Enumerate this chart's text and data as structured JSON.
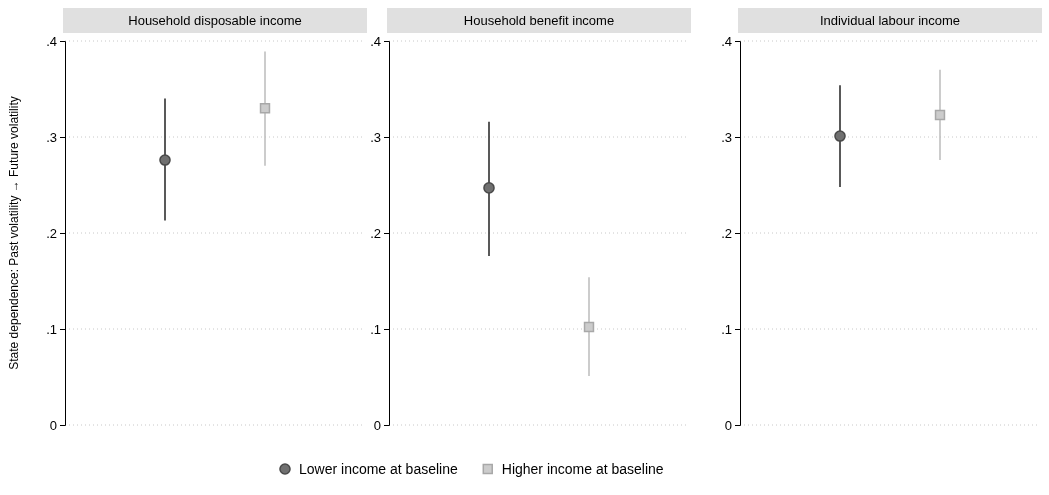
{
  "chart_data": [
    {
      "type": "scatter",
      "title": "Household disposable income",
      "ylabel": "State dependence: Past volatility → Future volatility",
      "categories": [
        null,
        null
      ],
      "ylim": [
        0,
        0.4
      ],
      "yticks": [
        {
          "value": 0,
          "label": "0"
        },
        {
          "value": 0.1,
          "label": ".1"
        },
        {
          "value": 0.2,
          "label": ".2"
        },
        {
          "value": 0.3,
          "label": ".3"
        },
        {
          "value": 0.4,
          "label": ".4"
        }
      ],
      "grid": "y",
      "legend": "bottom",
      "series": [
        {
          "name": "Lower income at baseline",
          "color": "#707070",
          "marker": "circle",
          "values": [
            0.276,
            null
          ],
          "errors": [
            [
              0.213,
              0.34
            ],
            null
          ]
        },
        {
          "name": "Higher income at baseline",
          "color": "#cccccc",
          "marker": "square",
          "values": [
            null,
            0.33
          ],
          "errors": [
            null,
            [
              0.27,
              0.389
            ]
          ]
        }
      ]
    },
    {
      "type": "scatter",
      "title": "Household benefit income",
      "categories": [
        null,
        null
      ],
      "ylim": [
        0,
        0.4
      ],
      "yticks": [
        {
          "value": 0,
          "label": "0"
        },
        {
          "value": 0.1,
          "label": ".1"
        },
        {
          "value": 0.2,
          "label": ".2"
        },
        {
          "value": 0.3,
          "label": ".3"
        },
        {
          "value": 0.4,
          "label": ".4"
        }
      ],
      "grid": "y",
      "series": [
        {
          "color": "#707070",
          "marker": "circle",
          "values": [
            0.247,
            null
          ],
          "errors": [
            [
              0.176,
              0.316
            ],
            null
          ]
        },
        {
          "color": "#cccccc",
          "marker": "square",
          "values": [
            null,
            0.102
          ],
          "errors": [
            null,
            [
              0.051,
              0.154
            ]
          ]
        }
      ]
    },
    {
      "type": "scatter",
      "title": "Individual labour income",
      "categories": [
        null,
        null
      ],
      "ylim": [
        0,
        0.4
      ],
      "yticks": [
        {
          "value": 0,
          "label": "0"
        },
        {
          "value": 0.1,
          "label": ".1"
        },
        {
          "value": 0.2,
          "label": ".2"
        },
        {
          "value": 0.3,
          "label": ".3"
        },
        {
          "value": 0.4,
          "label": ".4"
        }
      ],
      "grid": "y",
      "series": [
        {
          "color": "#707070",
          "marker": "circle",
          "values": [
            0.301,
            null
          ],
          "errors": [
            [
              0.248,
              0.354
            ],
            null
          ]
        },
        {
          "color": "#cccccc",
          "marker": "square",
          "values": [
            null,
            0.323
          ],
          "errors": [
            null,
            [
              0.276,
              0.37
            ]
          ]
        }
      ]
    }
  ]
}
